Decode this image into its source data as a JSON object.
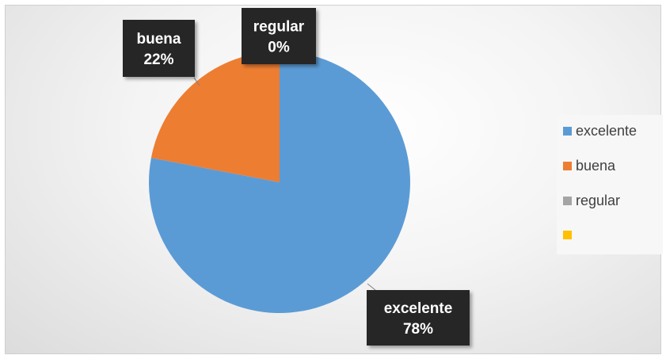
{
  "chart_data": {
    "type": "pie",
    "categories": [
      "excelente",
      "buena",
      "regular",
      ""
    ],
    "values": [
      78,
      22,
      0,
      0
    ],
    "colors": [
      "#5b9bd5",
      "#ed7d31",
      "#a5a5a5",
      "#ffc000"
    ],
    "data_labels": [
      {
        "name": "excelente",
        "percent": "78%"
      },
      {
        "name": "buena",
        "percent": "22%"
      },
      {
        "name": "regular",
        "percent": "0%"
      }
    ],
    "legend": [
      "excelente",
      "buena",
      "regular",
      ""
    ],
    "legend_position": "right",
    "start_angle": "12 o'clock, clockwise"
  }
}
